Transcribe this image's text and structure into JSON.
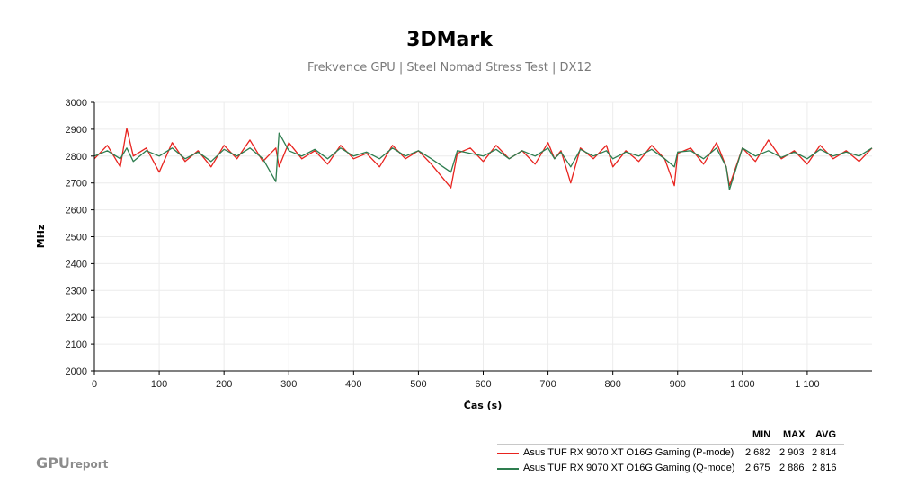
{
  "chart_data": {
    "type": "line",
    "title": "3DMark",
    "subtitle": "Frekvence GPU | Steel Nomad Stress Test | DX12",
    "xlabel": "Čas (s)",
    "ylabel": "MHz",
    "xlim": [
      0,
      1200
    ],
    "ylim": [
      2000,
      3000
    ],
    "grid": true,
    "x_ticks": [
      0,
      100,
      200,
      300,
      400,
      500,
      600,
      700,
      800,
      900,
      1000,
      1100
    ],
    "x_tick_labels": [
      "0",
      "100",
      "200",
      "300",
      "400",
      "500",
      "600",
      "700",
      "800",
      "900",
      "1 000",
      "1 100"
    ],
    "y_ticks": [
      2000,
      2100,
      2200,
      2300,
      2400,
      2500,
      2600,
      2700,
      2800,
      2900,
      3000
    ],
    "y_tick_labels": [
      "2000",
      "2100",
      "2200",
      "2300",
      "2400",
      "2500",
      "2600",
      "2700",
      "2800",
      "2900",
      "3000"
    ],
    "x": [
      0,
      20,
      40,
      50,
      60,
      80,
      100,
      120,
      140,
      160,
      180,
      200,
      220,
      240,
      260,
      280,
      285,
      300,
      320,
      340,
      360,
      380,
      400,
      420,
      440,
      460,
      480,
      500,
      520,
      550,
      560,
      580,
      600,
      620,
      640,
      660,
      680,
      700,
      710,
      720,
      735,
      750,
      770,
      790,
      800,
      820,
      840,
      860,
      880,
      895,
      900,
      920,
      940,
      960,
      975,
      980,
      1000,
      1020,
      1040,
      1060,
      1080,
      1100,
      1120,
      1140,
      1160,
      1180,
      1200
    ],
    "series": [
      {
        "name": "Asus TUF RX 9070 XT O16G Gaming (P-mode)",
        "color": "#e8231e",
        "values": [
          2790,
          2840,
          2760,
          2903,
          2800,
          2830,
          2740,
          2850,
          2780,
          2820,
          2760,
          2840,
          2790,
          2860,
          2780,
          2830,
          2760,
          2850,
          2790,
          2820,
          2770,
          2840,
          2790,
          2810,
          2760,
          2840,
          2790,
          2820,
          2770,
          2682,
          2810,
          2830,
          2780,
          2840,
          2790,
          2820,
          2770,
          2850,
          2790,
          2820,
          2700,
          2830,
          2790,
          2840,
          2760,
          2820,
          2780,
          2840,
          2790,
          2690,
          2810,
          2830,
          2770,
          2850,
          2760,
          2690,
          2830,
          2780,
          2860,
          2790,
          2820,
          2770,
          2840,
          2790,
          2820,
          2780,
          2830
        ]
      },
      {
        "name": "Asus TUF RX 9070 XT O16G Gaming (Q-mode)",
        "color": "#2e7d4f",
        "values": [
          2800,
          2820,
          2790,
          2830,
          2780,
          2820,
          2800,
          2830,
          2790,
          2815,
          2780,
          2825,
          2800,
          2830,
          2790,
          2705,
          2886,
          2820,
          2800,
          2825,
          2790,
          2830,
          2800,
          2815,
          2790,
          2830,
          2800,
          2820,
          2790,
          2740,
          2820,
          2810,
          2800,
          2825,
          2790,
          2820,
          2800,
          2830,
          2790,
          2815,
          2760,
          2825,
          2800,
          2820,
          2790,
          2815,
          2800,
          2825,
          2790,
          2760,
          2815,
          2820,
          2790,
          2830,
          2760,
          2675,
          2830,
          2800,
          2820,
          2795,
          2815,
          2790,
          2825,
          2800,
          2815,
          2800,
          2830
        ]
      }
    ]
  },
  "legend": {
    "headers": [
      "MIN",
      "MAX",
      "AVG"
    ],
    "rows": [
      {
        "label": "Asus TUF RX 9070 XT O16G Gaming (P-mode)",
        "color": "#e8231e",
        "min": "2 682",
        "max": "2 903",
        "avg": "2 814"
      },
      {
        "label": "Asus TUF RX 9070 XT O16G Gaming (Q-mode)",
        "color": "#2e7d4f",
        "min": "2 675",
        "max": "2 886",
        "avg": "2 816"
      }
    ]
  },
  "branding": {
    "logo_main": "GPU",
    "logo_sub": "report"
  }
}
